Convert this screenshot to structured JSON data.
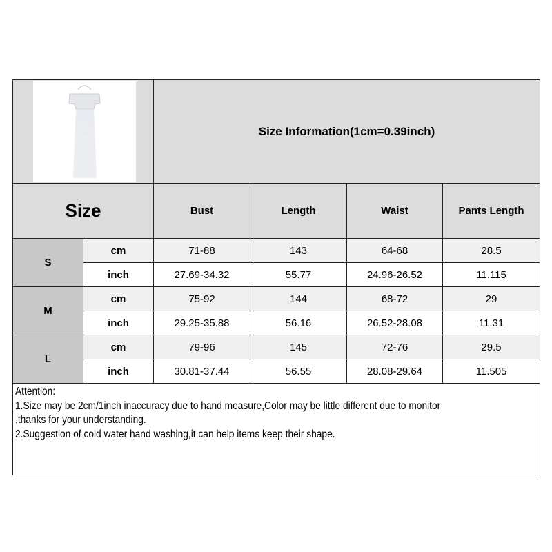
{
  "header": {
    "title": "Size Information(1cm=0.39inch)",
    "size_label": "Size",
    "columns": [
      "Bust",
      "Length",
      "Waist",
      "Pants Length"
    ]
  },
  "product_image": {
    "icon": "white-dress-product-photo"
  },
  "sizes": [
    {
      "name": "S",
      "rows": [
        {
          "unit": "cm",
          "values": [
            "71-88",
            "143",
            "64-68",
            "28.5"
          ]
        },
        {
          "unit": "inch",
          "values": [
            "27.69-34.32",
            "55.77",
            "24.96-26.52",
            "11.115"
          ]
        }
      ]
    },
    {
      "name": "M",
      "rows": [
        {
          "unit": "cm",
          "values": [
            "75-92",
            "144",
            "68-72",
            "29"
          ]
        },
        {
          "unit": "inch",
          "values": [
            "29.25-35.88",
            "56.16",
            "26.52-28.08",
            "11.31"
          ]
        }
      ]
    },
    {
      "name": "L",
      "rows": [
        {
          "unit": "cm",
          "values": [
            "79-96",
            "145",
            "72-76",
            "29.5"
          ]
        },
        {
          "unit": "inch",
          "values": [
            "30.81-37.44",
            "56.55",
            "28.08-29.64",
            "11.505"
          ]
        }
      ]
    }
  ],
  "attention": [
    "Attention:",
    "1.Size may be 2cm/1inch inaccuracy due to hand measure,Color may be little different due to monitor",
    ",thanks for your understanding.",
    "2.Suggestion of cold water hand washing,it can help items keep their shape."
  ]
}
